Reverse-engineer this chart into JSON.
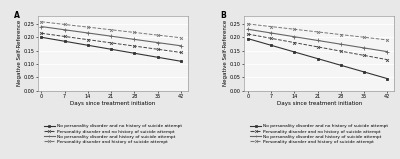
{
  "days": [
    0,
    7,
    14,
    21,
    28,
    35,
    42
  ],
  "panel_A": {
    "label": "A",
    "lines": [
      {
        "label": "No personality disorder and no history of suicide attempt",
        "style": "solid",
        "marker": "s",
        "color": "#333333",
        "linewidth": 0.8,
        "markersize": 1.8,
        "values": [
          0.2,
          0.185,
          0.17,
          0.155,
          0.14,
          0.125,
          0.11
        ]
      },
      {
        "label": "Personality disorder and no history of suicide attempt",
        "style": "dashed",
        "marker": "x",
        "color": "#444444",
        "linewidth": 0.7,
        "markersize": 2.0,
        "values": [
          0.215,
          0.203,
          0.191,
          0.179,
          0.167,
          0.155,
          0.143
        ]
      },
      {
        "label": "No personality disorder and history of suicide attempt",
        "style": "solid",
        "marker": "+",
        "color": "#666666",
        "linewidth": 0.8,
        "markersize": 2.5,
        "values": [
          0.24,
          0.228,
          0.216,
          0.204,
          0.192,
          0.18,
          0.168
        ]
      },
      {
        "label": "Personality disorder and history of suicide attempt",
        "style": "dashed",
        "marker": "x",
        "color": "#777777",
        "linewidth": 0.7,
        "markersize": 2.0,
        "values": [
          0.258,
          0.248,
          0.238,
          0.228,
          0.218,
          0.208,
          0.198
        ]
      }
    ],
    "ylabel": "Negative Self-Reference",
    "xlabel": "Days since treatment initiation",
    "ylim": [
      0.0,
      0.28
    ],
    "yticks": [
      0.0,
      0.05,
      0.1,
      0.15,
      0.2,
      0.25
    ]
  },
  "panel_B": {
    "label": "B",
    "lines": [
      {
        "label": "No personality disorder and no history of suicide attempt",
        "style": "solid",
        "marker": "s",
        "color": "#333333",
        "linewidth": 0.8,
        "markersize": 1.8,
        "values": [
          0.195,
          0.17,
          0.145,
          0.12,
          0.095,
          0.07,
          0.045
        ]
      },
      {
        "label": "Personality disorder and no history of suicide attempt",
        "style": "dashed",
        "marker": "x",
        "color": "#444444",
        "linewidth": 0.7,
        "markersize": 2.0,
        "values": [
          0.212,
          0.196,
          0.18,
          0.164,
          0.148,
          0.132,
          0.116
        ]
      },
      {
        "label": "No personality disorder and history of suicide attempt",
        "style": "solid",
        "marker": "+",
        "color": "#666666",
        "linewidth": 0.8,
        "markersize": 2.5,
        "values": [
          0.23,
          0.216,
          0.202,
          0.188,
          0.174,
          0.16,
          0.146
        ]
      },
      {
        "label": "Personality disorder and history of suicide attempt",
        "style": "dashed",
        "marker": "x",
        "color": "#777777",
        "linewidth": 0.7,
        "markersize": 2.0,
        "values": [
          0.25,
          0.24,
          0.23,
          0.22,
          0.21,
          0.2,
          0.19
        ]
      }
    ],
    "ylabel": "Negative Self-Reference",
    "xlabel": "Days since treatment initiation",
    "ylim": [
      0.0,
      0.28
    ],
    "yticks": [
      0.0,
      0.05,
      0.1,
      0.15,
      0.2,
      0.25
    ]
  },
  "background_color": "#e8e8e8",
  "plot_bg_color": "#f5f5f5",
  "grid_color": "#ffffff",
  "legend_fontsize": 3.2,
  "axis_fontsize": 4.0,
  "tick_fontsize": 3.5,
  "label_fontsize": 5.5
}
